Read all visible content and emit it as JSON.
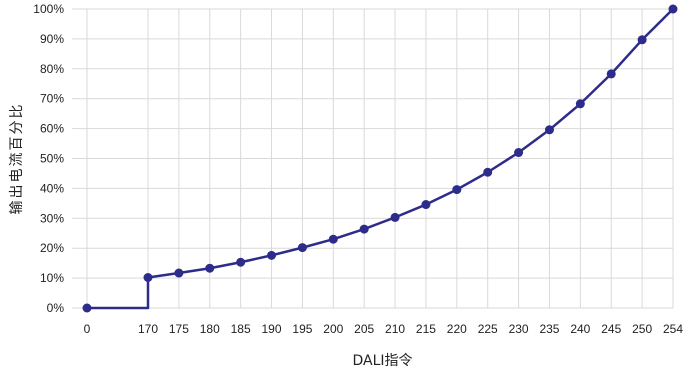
{
  "chart_data": {
    "type": "line",
    "title": "",
    "xlabel": "DALI指令",
    "ylabel": "输出电流百分比",
    "categories": [
      "0",
      "170",
      "175",
      "180",
      "185",
      "190",
      "195",
      "200",
      "205",
      "210",
      "215",
      "220",
      "225",
      "230",
      "235",
      "240",
      "245",
      "250",
      "254"
    ],
    "series": [
      {
        "values": [
          0,
          10.2,
          11.7,
          13.3,
          15.3,
          17.6,
          20.2,
          23.0,
          26.4,
          30.3,
          34.6,
          39.6,
          45.4,
          52.0,
          59.6,
          68.3,
          78.3,
          89.7,
          100.0
        ]
      }
    ],
    "step_after_first_point": true,
    "y_ticks": [
      "0%",
      "10%",
      "20%",
      "30%",
      "40%",
      "50%",
      "60%",
      "70%",
      "80%",
      "90%",
      "100%"
    ],
    "ylim": [
      0,
      100
    ],
    "grid": "vertical-and-horizontal",
    "legend": "none",
    "colors": {
      "series": "#2e2c8a",
      "grid": "#d9d9d9",
      "axis": "#222222"
    }
  }
}
